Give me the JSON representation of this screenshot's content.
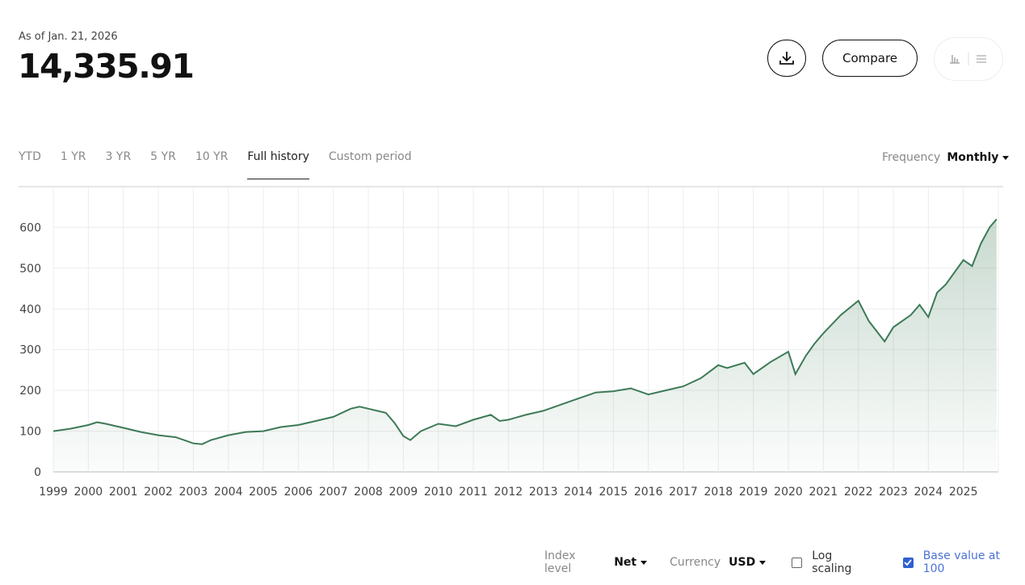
{
  "header": {
    "as_of": "As of Jan. 21, 2026",
    "value": "14,335.91",
    "compare": "Compare"
  },
  "tabs": {
    "items": [
      "YTD",
      "1 YR",
      "3 YR",
      "5 YR",
      "10 YR",
      "Full history",
      "Custom period"
    ],
    "active": 5
  },
  "frequency": {
    "label": "Frequency",
    "value": "Monthly"
  },
  "controls": {
    "index_level": {
      "label": "Index level",
      "value": "Net"
    },
    "currency": {
      "label": "Currency",
      "value": "USD"
    },
    "log_scaling": {
      "label": "Log scaling",
      "checked": false
    },
    "base_value": {
      "label": "Base value at 100",
      "checked": true
    }
  },
  "chart_data": {
    "type": "area",
    "color": "#3d7a57",
    "grid": true,
    "log_scale": false,
    "x": [
      1999.0,
      1999.5,
      2000.0,
      2000.25,
      2000.5,
      2001.0,
      2001.5,
      2002.0,
      2002.5,
      2003.0,
      2003.25,
      2003.5,
      2004.0,
      2004.5,
      2005.0,
      2005.5,
      2006.0,
      2006.5,
      2007.0,
      2007.5,
      2007.75,
      2008.0,
      2008.5,
      2008.75,
      2009.0,
      2009.2,
      2009.5,
      2010.0,
      2010.5,
      2011.0,
      2011.5,
      2011.75,
      2012.0,
      2012.5,
      2013.0,
      2013.5,
      2014.0,
      2014.5,
      2015.0,
      2015.5,
      2016.0,
      2016.5,
      2017.0,
      2017.5,
      2018.0,
      2018.25,
      2018.75,
      2019.0,
      2019.5,
      2020.0,
      2020.2,
      2020.5,
      2020.75,
      2021.0,
      2021.5,
      2022.0,
      2022.3,
      2022.75,
      2023.0,
      2023.5,
      2023.75,
      2024.0,
      2024.25,
      2024.5,
      2024.75,
      2025.0,
      2025.25,
      2025.5,
      2025.75,
      2025.95
    ],
    "values": [
      100,
      106,
      115,
      122,
      118,
      108,
      98,
      90,
      85,
      70,
      68,
      78,
      90,
      98,
      100,
      110,
      115,
      125,
      135,
      155,
      160,
      155,
      145,
      120,
      88,
      78,
      100,
      118,
      112,
      128,
      140,
      125,
      128,
      140,
      150,
      165,
      180,
      195,
      198,
      205,
      190,
      200,
      210,
      230,
      262,
      255,
      268,
      240,
      270,
      295,
      240,
      285,
      315,
      340,
      385,
      420,
      370,
      320,
      355,
      385,
      410,
      380,
      440,
      460,
      490,
      520,
      505,
      560,
      600,
      620
    ],
    "xlim": [
      1999,
      2026
    ],
    "xticks": [
      1999,
      2000,
      2001,
      2002,
      2003,
      2004,
      2005,
      2006,
      2007,
      2008,
      2009,
      2010,
      2011,
      2012,
      2013,
      2014,
      2015,
      2016,
      2017,
      2018,
      2019,
      2020,
      2021,
      2022,
      2023,
      2024,
      2025
    ],
    "ylim": [
      0,
      700
    ],
    "yticks": [
      0,
      100,
      200,
      300,
      400,
      500,
      600
    ]
  }
}
